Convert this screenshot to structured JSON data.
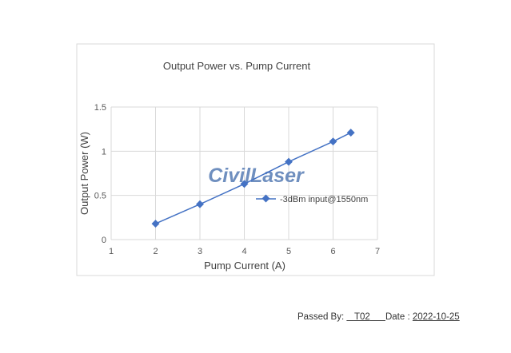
{
  "chart_data": {
    "type": "line",
    "title": "Output Power vs. Pump Current",
    "xlabel": "Pump Current (A)",
    "ylabel": "Output Power (W)",
    "xlim": [
      1,
      7
    ],
    "ylim": [
      0,
      1.5
    ],
    "xticks": [
      "1",
      "2",
      "3",
      "4",
      "5",
      "6",
      "7"
    ],
    "yticks": [
      "0",
      "0.5",
      "1",
      "1.5"
    ],
    "grid": true,
    "legend_position": "right",
    "series": [
      {
        "name": "-3dBm input@1550nm",
        "color": "#4472c4",
        "x": [
          2,
          3,
          4,
          5,
          6,
          6.4
        ],
        "y": [
          0.18,
          0.4,
          0.63,
          0.88,
          1.11,
          1.21
        ]
      }
    ]
  },
  "watermark": "CivilLaser",
  "footer": {
    "passed_by_label": "Passed By:",
    "passed_by": "T02",
    "date_label": "Date",
    "date_sep": ":",
    "date": "2022-10-25"
  }
}
